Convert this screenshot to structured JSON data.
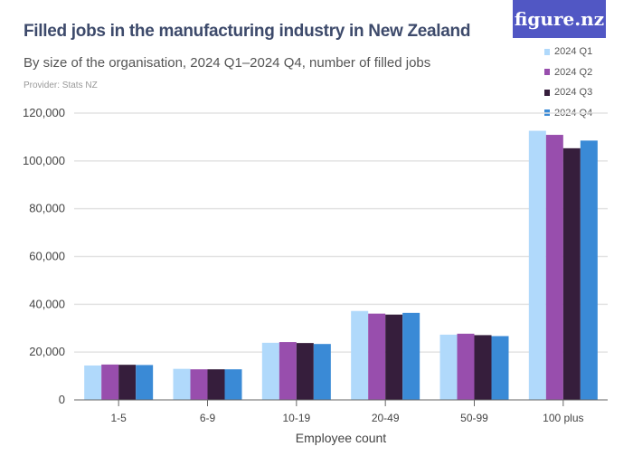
{
  "chart_data": {
    "type": "bar",
    "title": "Filled jobs in the manufacturing industry in New Zealand",
    "subtitle": "By size of the organisation, 2024 Q1–2024 Q4, number of filled jobs",
    "provider": "Provider: Stats NZ",
    "logo": "figure.nz",
    "xlabel": "Employee count",
    "ylabel": "",
    "ylim": [
      0,
      120000
    ],
    "yticks": [
      0,
      20000,
      40000,
      60000,
      80000,
      100000,
      120000
    ],
    "ytick_labels": [
      "0",
      "20,000",
      "40,000",
      "60,000",
      "80,000",
      "100,000",
      "120,000"
    ],
    "grid": true,
    "legend_placement": "top-right",
    "categories": [
      "1-5",
      "6-9",
      "10-19",
      "20-49",
      "50-99",
      "100 plus"
    ],
    "series": [
      {
        "name": "2024 Q1",
        "color": "#b0d9fb",
        "values": [
          14400,
          13000,
          23900,
          37200,
          27300,
          112600
        ]
      },
      {
        "name": "2024 Q2",
        "color": "#984ead",
        "values": [
          14800,
          12800,
          24200,
          36100,
          27700,
          110900
        ]
      },
      {
        "name": "2024 Q3",
        "color": "#361e3c",
        "values": [
          14700,
          12800,
          23800,
          35700,
          27100,
          105300
        ]
      },
      {
        "name": "2024 Q4",
        "color": "#3a8ad6",
        "values": [
          14600,
          12800,
          23400,
          36400,
          26700,
          108500
        ]
      }
    ]
  }
}
